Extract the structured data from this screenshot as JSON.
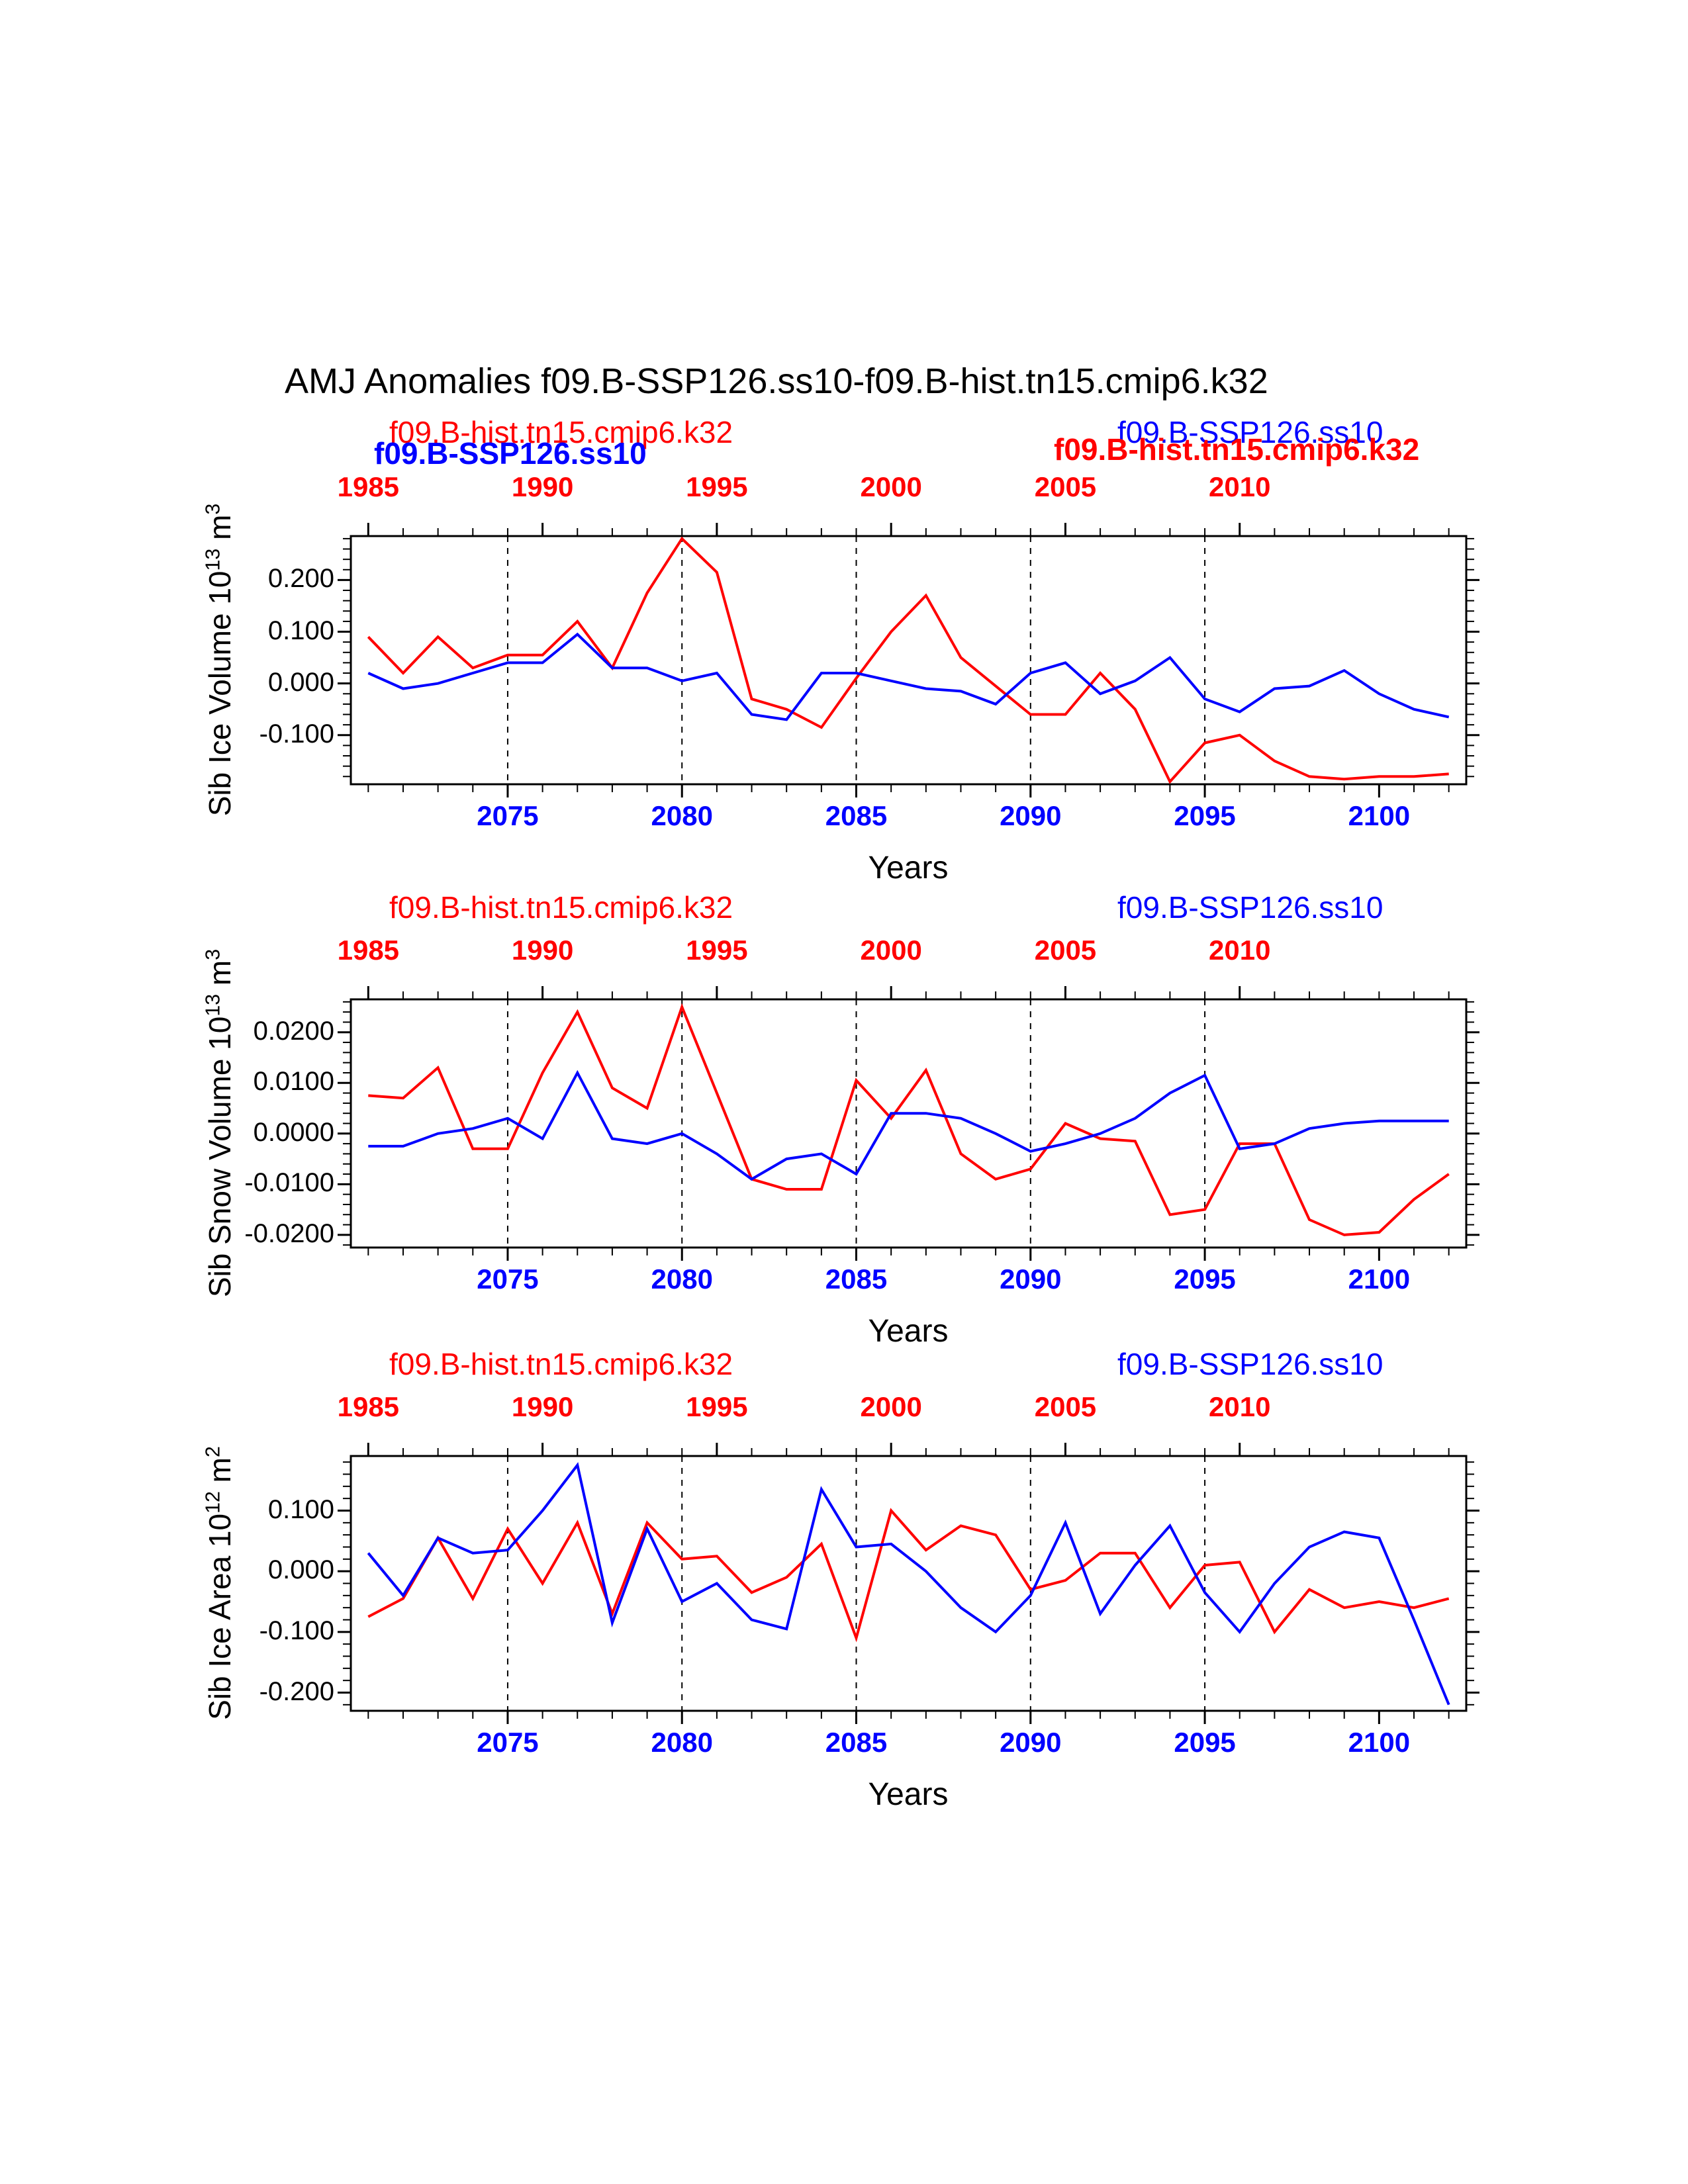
{
  "title": "AMJ Anomalies f09.B-SSP126.ss10-f09.B-hist.tn15.cmip6.k32",
  "colors": {
    "hist": "#ff0000",
    "ssp": "#0000ff",
    "axis": "#000000",
    "background": "#ffffff"
  },
  "runs": {
    "hist_label": "f09.B-hist.tn15.cmip6.k32",
    "ssp_label": "f09.B-SSP126.ss10"
  },
  "xaxis": {
    "label": "Years",
    "x_range": [
      2070.5,
      2102.5
    ],
    "hist_year_offset": 86,
    "bottom_tick_years": [
      2075,
      2080,
      2085,
      2090,
      2095,
      2100
    ],
    "bottom_tick_labels": [
      "2075",
      "2080",
      "2085",
      "2090",
      "2095",
      "2100"
    ],
    "top_tick_years": [
      1985,
      1990,
      1995,
      2000,
      2005,
      2010
    ],
    "top_tick_labels": [
      "1985",
      "1990",
      "1995",
      "2000",
      "2005",
      "2010"
    ],
    "dashed_gridline_years": [
      2075,
      2080,
      2085,
      2090,
      2095
    ],
    "minor_tick_step": 1,
    "major_tick_step": 5
  },
  "chart_data": [
    {
      "type": "line",
      "panel": "sib-ice-volume",
      "xlabel": "Years",
      "ylabel": {
        "plain": "Sib Ice Volume 10^13 m^3",
        "base": "Sib Ice Volume 10",
        "exp": "13",
        "unit": " m",
        "unit_exp": "3"
      },
      "ylim": [
        -0.195,
        0.285
      ],
      "ytick_values": [
        0.2,
        0.1,
        0.0,
        -0.1
      ],
      "ytick_labels": [
        "0.200",
        "0.100",
        "0.000",
        "-0.100"
      ],
      "y_minor_step": 0.02,
      "grid": "vertical-dashed",
      "legends": [
        {
          "text": "f09.B-hist.tn15.cmip6.k32",
          "color": "#ff0000",
          "bold": false,
          "slot": "left-upper"
        },
        {
          "text": "f09.B-SSP126.ss10",
          "color": "#0000ff",
          "bold": true,
          "slot": "left-lower"
        },
        {
          "text": "f09.B-SSP126.ss10",
          "color": "#0000ff",
          "bold": false,
          "slot": "right-upper"
        },
        {
          "text": "f09.B-hist.tn15.cmip6.k32",
          "color": "#ff0000",
          "bold": true,
          "slot": "right-lower"
        }
      ],
      "series": [
        {
          "name": "f09.B-hist.tn15.cmip6.k32",
          "color": "#ff0000",
          "x_axis": "top",
          "years": [
            1985,
            1986,
            1987,
            1988,
            1989,
            1990,
            1991,
            1992,
            1993,
            1994,
            1995,
            1996,
            1997,
            1998,
            1999,
            2000,
            2001,
            2002,
            2003,
            2004,
            2005,
            2006,
            2007,
            2008,
            2009,
            2010,
            2011,
            2012,
            2013,
            2014,
            2015,
            2016
          ],
          "values": [
            0.09,
            0.02,
            0.09,
            0.03,
            0.055,
            0.055,
            0.12,
            0.03,
            0.175,
            0.28,
            0.215,
            -0.03,
            -0.05,
            -0.085,
            0.01,
            0.1,
            0.17,
            0.05,
            -0.005,
            -0.06,
            -0.06,
            0.02,
            -0.05,
            -0.19,
            -0.115,
            -0.1,
            -0.15,
            -0.18,
            -0.185,
            -0.18,
            -0.18,
            -0.175
          ]
        },
        {
          "name": "f09.B-SSP126.ss10",
          "color": "#0000ff",
          "x_axis": "bottom",
          "years": [
            2071,
            2072,
            2073,
            2074,
            2075,
            2076,
            2077,
            2078,
            2079,
            2080,
            2081,
            2082,
            2083,
            2084,
            2085,
            2086,
            2087,
            2088,
            2089,
            2090,
            2091,
            2092,
            2093,
            2094,
            2095,
            2096,
            2097,
            2098,
            2099,
            2100,
            2101,
            2102
          ],
          "values": [
            0.02,
            -0.01,
            0.0,
            0.02,
            0.04,
            0.04,
            0.095,
            0.03,
            0.03,
            0.005,
            0.02,
            -0.06,
            -0.07,
            0.02,
            0.02,
            0.005,
            -0.01,
            -0.015,
            -0.04,
            0.02,
            0.04,
            -0.02,
            0.005,
            0.05,
            -0.03,
            -0.055,
            -0.01,
            -0.005,
            0.025,
            -0.02,
            -0.05,
            -0.065
          ]
        }
      ]
    },
    {
      "type": "line",
      "panel": "sib-snow-volume",
      "xlabel": "Years",
      "ylabel": {
        "plain": "Sib Snow Volume 10^13 m^3",
        "base": "Sib Snow Volume 10",
        "exp": "13",
        "unit": " m",
        "unit_exp": "3"
      },
      "ylim": [
        -0.0225,
        0.0265
      ],
      "ytick_values": [
        0.02,
        0.01,
        0.0,
        -0.01,
        -0.02
      ],
      "ytick_labels": [
        "0.0200",
        "0.0100",
        "0.0000",
        "-0.0100",
        "-0.0200"
      ],
      "y_minor_step": 0.002,
      "grid": "vertical-dashed",
      "legends": [
        {
          "text": "f09.B-hist.tn15.cmip6.k32",
          "color": "#ff0000",
          "bold": false,
          "slot": "left"
        },
        {
          "text": "f09.B-SSP126.ss10",
          "color": "#0000ff",
          "bold": false,
          "slot": "right"
        }
      ],
      "series": [
        {
          "name": "f09.B-hist.tn15.cmip6.k32",
          "color": "#ff0000",
          "x_axis": "top",
          "years": [
            1985,
            1986,
            1987,
            1988,
            1989,
            1990,
            1991,
            1992,
            1993,
            1994,
            1995,
            1996,
            1997,
            1998,
            1999,
            2000,
            2001,
            2002,
            2003,
            2004,
            2005,
            2006,
            2007,
            2008,
            2009,
            2010,
            2011,
            2012,
            2013,
            2014,
            2015,
            2016
          ],
          "values": [
            0.0075,
            0.007,
            0.013,
            -0.003,
            -0.003,
            0.012,
            0.024,
            0.009,
            0.005,
            0.025,
            0.008,
            -0.009,
            -0.011,
            -0.011,
            0.0105,
            0.003,
            0.0125,
            -0.004,
            -0.009,
            -0.007,
            0.002,
            -0.001,
            -0.0015,
            -0.016,
            -0.015,
            -0.002,
            -0.002,
            -0.017,
            -0.02,
            -0.0195,
            -0.013,
            -0.008
          ]
        },
        {
          "name": "f09.B-SSP126.ss10",
          "color": "#0000ff",
          "x_axis": "bottom",
          "years": [
            2071,
            2072,
            2073,
            2074,
            2075,
            2076,
            2077,
            2078,
            2079,
            2080,
            2081,
            2082,
            2083,
            2084,
            2085,
            2086,
            2087,
            2088,
            2089,
            2090,
            2091,
            2092,
            2093,
            2094,
            2095,
            2096,
            2097,
            2098,
            2099,
            2100,
            2101,
            2102
          ],
          "values": [
            -0.0025,
            -0.0025,
            0.0,
            0.001,
            0.003,
            -0.001,
            0.012,
            -0.001,
            -0.002,
            0.0,
            -0.004,
            -0.009,
            -0.005,
            -0.004,
            -0.008,
            0.004,
            0.004,
            0.003,
            0.0,
            -0.0035,
            -0.002,
            0.0,
            0.003,
            0.008,
            0.0115,
            -0.003,
            -0.002,
            0.001,
            0.002,
            0.0025,
            0.0025,
            0.0025
          ]
        }
      ]
    },
    {
      "type": "line",
      "panel": "sib-ice-area",
      "xlabel": "Years",
      "ylabel": {
        "plain": "Sib Ice Area 10^12 m^2",
        "base": "Sib Ice Area 10",
        "exp": "12",
        "unit": " m",
        "unit_exp": "2"
      },
      "ylim": [
        -0.23,
        0.19
      ],
      "ytick_values": [
        0.1,
        0.0,
        -0.1,
        -0.2
      ],
      "ytick_labels": [
        "0.100",
        "0.000",
        "-0.100",
        "-0.200"
      ],
      "y_minor_step": 0.02,
      "grid": "vertical-dashed",
      "legends": [
        {
          "text": "f09.B-hist.tn15.cmip6.k32",
          "color": "#ff0000",
          "bold": false,
          "slot": "left"
        },
        {
          "text": "f09.B-SSP126.ss10",
          "color": "#0000ff",
          "bold": false,
          "slot": "right"
        }
      ],
      "series": [
        {
          "name": "f09.B-hist.tn15.cmip6.k32",
          "color": "#ff0000",
          "x_axis": "top",
          "years": [
            1985,
            1986,
            1987,
            1988,
            1989,
            1990,
            1991,
            1992,
            1993,
            1994,
            1995,
            1996,
            1997,
            1998,
            1999,
            2000,
            2001,
            2002,
            2003,
            2004,
            2005,
            2006,
            2007,
            2008,
            2009,
            2010,
            2011,
            2012,
            2013,
            2014,
            2015,
            2016
          ],
          "values": [
            -0.075,
            -0.045,
            0.055,
            -0.045,
            0.07,
            -0.02,
            0.08,
            -0.07,
            0.08,
            0.02,
            0.025,
            -0.035,
            -0.01,
            0.045,
            -0.11,
            0.1,
            0.035,
            0.075,
            0.06,
            -0.03,
            -0.015,
            0.03,
            0.03,
            -0.06,
            0.01,
            0.015,
            -0.1,
            -0.03,
            -0.06,
            -0.05,
            -0.06,
            -0.045
          ]
        },
        {
          "name": "f09.B-SSP126.ss10",
          "color": "#0000ff",
          "x_axis": "bottom",
          "years": [
            2071,
            2072,
            2073,
            2074,
            2075,
            2076,
            2077,
            2078,
            2079,
            2080,
            2081,
            2082,
            2083,
            2084,
            2085,
            2086,
            2087,
            2088,
            2089,
            2090,
            2091,
            2092,
            2093,
            2094,
            2095,
            2096,
            2097,
            2098,
            2099,
            2100,
            2101,
            2102
          ],
          "values": [
            0.03,
            -0.04,
            0.055,
            0.03,
            0.035,
            0.1,
            0.175,
            -0.085,
            0.07,
            -0.05,
            -0.02,
            -0.08,
            -0.095,
            0.135,
            0.04,
            0.045,
            0.0,
            -0.06,
            -0.1,
            -0.04,
            0.08,
            -0.07,
            0.01,
            0.075,
            -0.035,
            -0.1,
            -0.02,
            0.04,
            0.065,
            0.055,
            -0.08,
            -0.22
          ]
        }
      ]
    }
  ]
}
